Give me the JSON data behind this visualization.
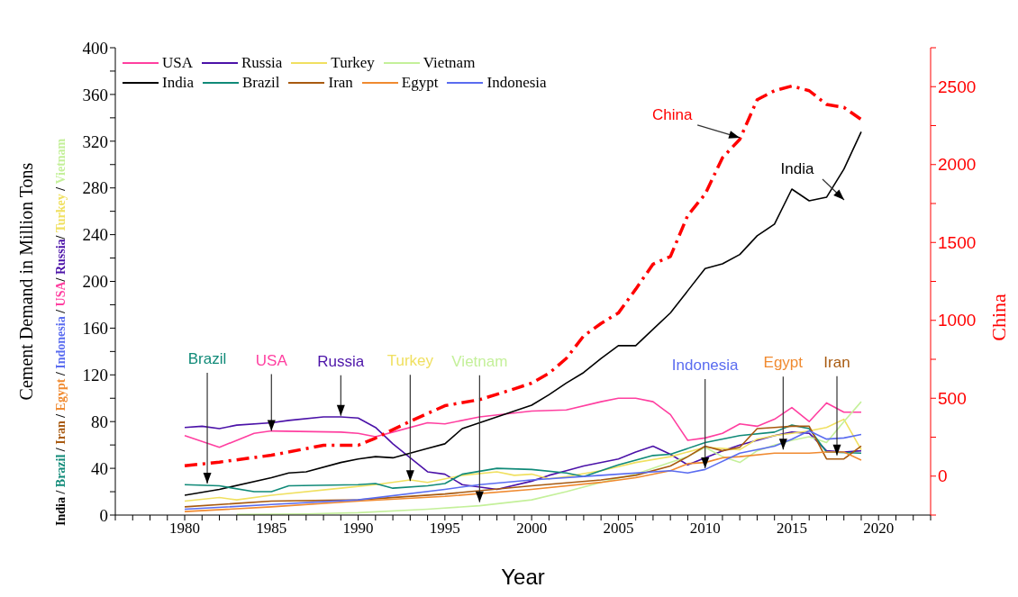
{
  "chart_data": {
    "type": "line",
    "xlabel": "Year",
    "ylabel": "Cement Demand in Million Tons",
    "y2label": "China",
    "annotations": [
      "India / Brazil / Iran / Egypt / Indonesia / USA/ Russia/ Turkey / Vietnam",
      {
        "text": "Brazil",
        "x": 1981.3,
        "y": 27
      },
      {
        "text": "USA",
        "x": 1985,
        "y": 72
      },
      {
        "text": "Russia",
        "x": 1989,
        "y": 85
      },
      {
        "text": "Turkey",
        "x": 1993,
        "y": 29
      },
      {
        "text": "Vietnam",
        "x": 1997,
        "y": 11
      },
      {
        "text": "Indonesia",
        "x": 2010,
        "y": 40
      },
      {
        "text": "Egypt",
        "x": 2014.5,
        "y": 56
      },
      {
        "text": "Iran",
        "x": 2017.6,
        "y": 51
      },
      {
        "text": "China",
        "x": 2012,
        "y": 323
      },
      "India"
    ],
    "xlim": [
      1976,
      2023
    ],
    "xticks": [
      {
        "value": 1976,
        "label": null
      },
      {
        "value": 1977,
        "label": null
      },
      {
        "value": 1978,
        "label": null
      },
      {
        "value": 1979,
        "label": null
      },
      1980,
      {
        "value": 1981,
        "label": null
      },
      {
        "value": 1982,
        "label": null
      },
      {
        "value": 1983,
        "label": null
      },
      {
        "value": 1984,
        "label": null
      },
      1985,
      {
        "value": 1986,
        "label": null
      },
      {
        "value": 1987,
        "label": null
      },
      {
        "value": 1988,
        "label": null
      },
      {
        "value": 1989,
        "label": null
      },
      1990,
      {
        "value": 1991,
        "label": null
      },
      {
        "value": 1992,
        "label": null
      },
      {
        "value": 1993,
        "label": null
      },
      {
        "value": 1994,
        "label": null
      },
      1995,
      {
        "value": 1996,
        "label": null
      },
      {
        "value": 1997,
        "label": null
      },
      {
        "value": 1998,
        "label": null
      },
      {
        "value": 1999,
        "label": null
      },
      2000,
      {
        "value": 2001,
        "label": null
      },
      {
        "value": 2002,
        "label": null
      },
      {
        "value": 2003,
        "label": null
      },
      {
        "value": 2004,
        "label": null
      },
      2005,
      {
        "value": 2006,
        "label": null
      },
      {
        "value": 2007,
        "label": null
      },
      {
        "value": 2008,
        "label": null
      },
      {
        "value": 2009,
        "label": null
      },
      2010,
      {
        "value": 2011,
        "label": null
      },
      {
        "value": 2012,
        "label": null
      },
      {
        "value": 2013,
        "label": null
      },
      {
        "value": 2014,
        "label": null
      },
      2015,
      {
        "value": 2016,
        "label": null
      },
      {
        "value": 2017,
        "label": null
      },
      {
        "value": 2018,
        "label": null
      },
      {
        "value": 2019,
        "label": null
      },
      2020,
      {
        "value": 2021,
        "label": null
      },
      {
        "value": 2022,
        "label": null
      },
      {
        "value": 2023,
        "label": null
      }
    ],
    "ylim": [
      0,
      400
    ],
    "yticks": [
      0,
      {
        "value": 20,
        "label": null
      },
      40,
      {
        "value": 60,
        "label": null
      },
      80,
      {
        "value": 100,
        "label": null
      },
      120,
      {
        "value": 140,
        "label": null
      },
      160,
      {
        "value": 180,
        "label": null
      },
      200,
      {
        "value": 220,
        "label": null
      },
      240,
      {
        "value": 260,
        "label": null
      },
      280,
      {
        "value": 300,
        "label": null
      },
      320,
      {
        "value": 340,
        "label": null
      },
      360,
      {
        "value": 380,
        "label": null
      },
      400
    ],
    "y2lim": [
      -250,
      2750
    ],
    "y2ticks": [
      {
        "value": -250,
        "label": null
      },
      0,
      {
        "value": 250,
        "label": null
      },
      500,
      {
        "value": 750,
        "label": null
      },
      1000,
      {
        "value": 1250,
        "label": null
      },
      1500,
      {
        "value": 1750,
        "label": null
      },
      2000,
      {
        "value": 2250,
        "label": null
      },
      2500,
      {
        "value": 2750,
        "label": null
      }
    ],
    "grid": false,
    "legend": "top left",
    "line_style": "solid",
    "series": [
      {
        "name": "USA",
        "color": "#ff3fa0",
        "x": [
          1980,
          1982,
          1984,
          1985,
          1989,
          1990,
          1991,
          1992,
          1994,
          1995,
          1997,
          2000,
          2002,
          2004,
          2005,
          2006,
          2007,
          2008,
          2009,
          2010,
          2011,
          2012,
          2013,
          2014,
          2015,
          2016,
          2017,
          2018,
          2019
        ],
        "values": [
          68,
          58,
          70,
          72,
          71,
          70,
          67,
          71,
          79,
          78,
          84,
          89,
          90,
          97,
          100,
          100,
          97,
          86,
          64,
          66,
          70,
          78,
          76,
          82,
          92,
          80,
          96,
          88,
          88
        ]
      },
      {
        "name": "Russia",
        "color": "#4b12a8",
        "x": [
          1980,
          1981,
          1982,
          1983,
          1985,
          1986,
          1988,
          1989,
          1990,
          1991,
          1992,
          1994,
          1995,
          1996,
          1998,
          2000,
          2001,
          2002,
          2003,
          2005,
          2006,
          2007,
          2008,
          2009,
          2010,
          2011,
          2012,
          2013,
          2014,
          2015,
          2016,
          2017,
          2018,
          2019
        ],
        "values": [
          75,
          76,
          74,
          77,
          79,
          81,
          84,
          84,
          83,
          75,
          61,
          37,
          35,
          26,
          22,
          29,
          34,
          38,
          42,
          48,
          54,
          59,
          52,
          43,
          49,
          55,
          60,
          64,
          68,
          71,
          70,
          55,
          54,
          55
        ]
      },
      {
        "name": "Turkey",
        "color": "#f0e060",
        "x": [
          1980,
          1982,
          1983,
          1985,
          1989,
          1991,
          1993,
          1994,
          1996,
          1998,
          1999,
          2000,
          2001,
          2002,
          2004,
          2006,
          2008,
          2010,
          2012,
          2013,
          2014,
          2015,
          2016,
          2017,
          2018,
          2019
        ],
        "values": [
          12,
          15,
          13,
          17,
          23,
          26,
          30,
          28,
          34,
          37,
          34,
          35,
          31,
          33,
          38,
          45,
          50,
          58,
          56,
          65,
          68,
          70,
          72,
          75,
          82,
          56
        ]
      },
      {
        "name": "Vietnam",
        "color": "#c4f09a",
        "x": [
          1983,
          1987,
          1990,
          1994,
          1997,
          2000,
          2002,
          2004,
          2006,
          2008,
          2009,
          2010,
          2011,
          2012,
          2013,
          2014,
          2015,
          2016,
          2017,
          2018,
          2019
        ],
        "values": [
          0.5,
          1,
          2,
          5,
          8,
          13,
          20,
          28,
          35,
          45,
          50,
          58,
          50,
          45,
          55,
          60,
          64,
          67,
          62,
          80,
          97
        ]
      },
      {
        "name": "India",
        "color": "#000000",
        "x": [
          1980,
          1982,
          1985,
          1986,
          1987,
          1989,
          1990,
          1991,
          1992,
          1993,
          1994,
          1995,
          1996,
          1997,
          2000,
          2001,
          2002,
          2003,
          2004,
          2005,
          2006,
          2007,
          2008,
          2009,
          2010,
          2011,
          2012,
          2013,
          2014,
          2015,
          2016,
          2017,
          2018,
          2019
        ],
        "values": [
          17,
          22,
          32,
          36,
          37,
          45,
          48,
          50,
          49,
          53,
          57,
          61,
          74,
          79,
          94,
          103,
          113,
          122,
          134,
          145,
          145,
          159,
          173,
          192,
          211,
          215,
          223,
          239,
          249,
          279,
          269,
          272,
          296,
          328
        ]
      },
      {
        "name": "Brazil",
        "color": "#108a78",
        "x": [
          1980,
          1982,
          1984,
          1985,
          1986,
          1990,
          1991,
          1992,
          1994,
          1995,
          1996,
          1998,
          2000,
          2002,
          2003,
          2005,
          2007,
          2008,
          2010,
          2012,
          2014,
          2015,
          2016,
          2017,
          2019
        ],
        "values": [
          26,
          25,
          20,
          20,
          25,
          26,
          27,
          23,
          25,
          27,
          35,
          40,
          39,
          36,
          33,
          43,
          51,
          52,
          62,
          68,
          71,
          77,
          74,
          54,
          53
        ]
      },
      {
        "name": "Iran",
        "color": "#a85a10",
        "x": [
          1980,
          1985,
          1990,
          1995,
          2000,
          2004,
          2006,
          2008,
          2009,
          2010,
          2011,
          2012,
          2013,
          2014,
          2015,
          2016,
          2017,
          2018,
          2019
        ],
        "values": [
          7,
          12,
          13,
          18,
          25,
          30,
          34,
          42,
          50,
          59,
          55,
          58,
          74,
          75,
          76,
          76,
          48,
          48,
          59
        ]
      },
      {
        "name": "Egypt",
        "color": "#f08a30",
        "x": [
          1980,
          1985,
          1990,
          1995,
          2000,
          2004,
          2006,
          2008,
          2009,
          2010,
          2011,
          2012,
          2014,
          2016,
          2017,
          2018,
          2019
        ],
        "values": [
          3,
          7,
          12,
          16,
          22,
          28,
          32,
          38,
          44,
          45,
          49,
          50,
          53,
          53,
          54,
          54,
          47
        ]
      },
      {
        "name": "Indonesia",
        "color": "#5a6cf0",
        "x": [
          1980,
          1985,
          1990,
          1995,
          1997,
          2000,
          2004,
          2008,
          2009,
          2010,
          2012,
          2014,
          2015,
          2016,
          2017,
          2018,
          2019
        ],
        "values": [
          5,
          9,
          13,
          22,
          26,
          30,
          34,
          38,
          36,
          39,
          53,
          59,
          65,
          72,
          65,
          66,
          69
        ]
      },
      {
        "color": "#ff0000",
        "axis": "y2",
        "line_style": "dashed",
        "x": [
          1980,
          1982,
          1985,
          1988,
          1990,
          1991,
          1993,
          1995,
          1997,
          1999,
          2000,
          2001,
          2002,
          2003,
          2004,
          2005,
          2006,
          2007,
          2008,
          2009,
          2010,
          2011,
          2012,
          2013,
          2014,
          2015,
          2016,
          2017,
          2018,
          2019
        ],
        "values": [
          66,
          90,
          134,
          198,
          198,
          244,
          352,
          452,
          491,
          560,
          597,
          660,
          756,
          900,
          980,
          1047,
          1200,
          1361,
          1410,
          1674,
          1810,
          2044,
          2162,
          2416,
          2474,
          2504,
          2474,
          2386,
          2367,
          2289
        ]
      }
    ]
  }
}
